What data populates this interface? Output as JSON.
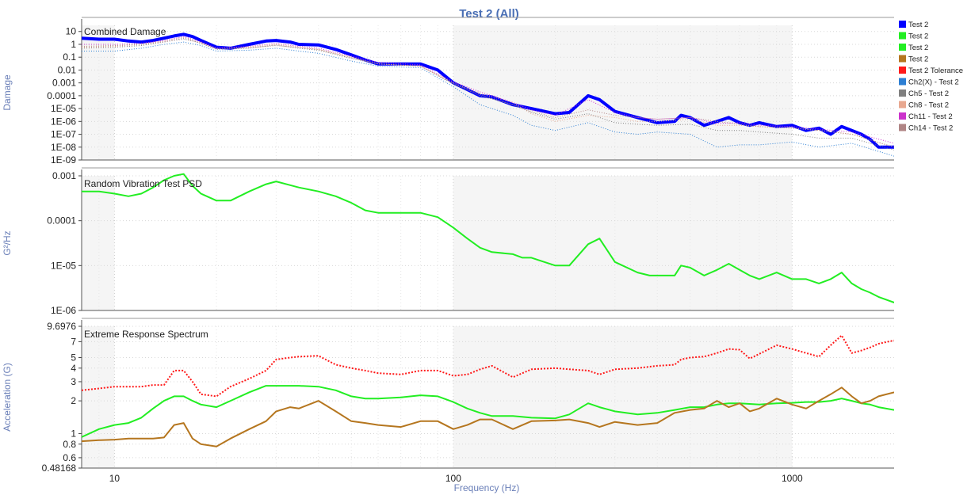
{
  "title": "Test 2 (All)",
  "xlabel": "Frequency (Hz)",
  "x_ticks": [
    "10",
    "100",
    "1000"
  ],
  "legend": [
    {
      "label": "Test 2",
      "color": "#0000ff"
    },
    {
      "label": "Test 2",
      "color": "#22ee22"
    },
    {
      "label": "Test 2",
      "color": "#22ee22"
    },
    {
      "label": "Test 2",
      "color": "#b5761f"
    },
    {
      "label": "Test 2 Tolerance",
      "color": "#ff1a1a"
    },
    {
      "label": "Ch2(X) - Test 2",
      "color": "#2d7fd3"
    },
    {
      "label": "Ch5 - Test 2",
      "color": "#808080"
    },
    {
      "label": "Ch8 - Test 2",
      "color": "#e8a890"
    },
    {
      "label": "Ch11 - Test 2",
      "color": "#cc33cc"
    },
    {
      "label": "Ch14 - Test 2",
      "color": "#b08585"
    }
  ],
  "chart_data": [
    {
      "type": "line",
      "title": "Combined Damage",
      "ylabel": "Damage",
      "yscale": "log",
      "xscale": "log",
      "xlim": [
        8,
        2000
      ],
      "ylim": [
        1e-09,
        30
      ],
      "y_ticks": [
        "10",
        "1",
        "0.1",
        "0.01",
        "0.001",
        "0.0001",
        "1E-05",
        "1E-06",
        "1E-07",
        "1E-08",
        "1E-09"
      ],
      "series": [
        {
          "name": "Test 2",
          "color": "#0000ff",
          "width": 4,
          "x": [
            8,
            9,
            10,
            11,
            12,
            13,
            14,
            15,
            16,
            17,
            18,
            20,
            22,
            25,
            28,
            30,
            33,
            35,
            40,
            45,
            50,
            55,
            60,
            70,
            80,
            90,
            100,
            110,
            120,
            130,
            150,
            170,
            200,
            220,
            250,
            270,
            300,
            350,
            400,
            450,
            470,
            500,
            550,
            600,
            650,
            700,
            750,
            800,
            900,
            1000,
            1100,
            1200,
            1300,
            1400,
            1500,
            1600,
            1700,
            1800,
            2000
          ],
          "y": [
            3,
            2.5,
            2.5,
            1.8,
            1.5,
            2,
            3,
            4.5,
            6,
            4,
            2,
            0.6,
            0.5,
            1,
            1.8,
            2,
            1.5,
            1,
            0.9,
            0.4,
            0.15,
            0.06,
            0.03,
            0.03,
            0.03,
            0.01,
            0.001,
            0.0003,
            0.0001,
            8e-05,
            2e-05,
            1e-05,
            4e-06,
            5e-06,
            0.0001,
            5e-05,
            6e-06,
            2e-06,
            8e-07,
            1e-06,
            3e-06,
            2e-06,
            5e-07,
            1e-06,
            2e-06,
            8e-07,
            5e-07,
            8e-07,
            4e-07,
            5e-07,
            2e-07,
            3e-07,
            1e-07,
            4e-07,
            2e-07,
            1e-07,
            4e-08,
            1e-08,
            1e-08
          ]
        },
        {
          "name": "Ch2(X) - Test 2",
          "color": "#2d7fd3",
          "width": 1,
          "dotted": true,
          "x": [
            8,
            10,
            12,
            14,
            16,
            18,
            20,
            25,
            30,
            35,
            40,
            50,
            60,
            80,
            100,
            120,
            150,
            170,
            200,
            250,
            300,
            350,
            400,
            500,
            600,
            700,
            800,
            1000,
            1200,
            1500,
            2000
          ],
          "y": [
            0.3,
            0.3,
            0.5,
            1.0,
            1.5,
            0.8,
            0.3,
            0.35,
            0.5,
            0.3,
            0.2,
            0.05,
            0.02,
            0.015,
            0.0005,
            2e-05,
            3e-06,
            5e-07,
            2e-07,
            8e-07,
            1.5e-07,
            1e-07,
            1.5e-07,
            1e-07,
            1e-08,
            1.5e-08,
            1.5e-08,
            2.5e-08,
            1e-08,
            2e-08,
            2e-09
          ]
        },
        {
          "name": "Ch5 - Test 2",
          "color": "#808080",
          "width": 1,
          "dotted": true,
          "x": [
            8,
            10,
            12,
            14,
            16,
            18,
            20,
            25,
            30,
            35,
            40,
            50,
            60,
            80,
            100,
            120,
            150,
            170,
            200,
            250,
            300,
            350,
            400,
            500,
            600,
            700,
            800,
            1000,
            1200,
            1500,
            2000
          ],
          "y": [
            0.5,
            0.6,
            0.8,
            1.5,
            3.0,
            1.2,
            0.4,
            0.5,
            0.9,
            0.5,
            0.35,
            0.08,
            0.03,
            0.02,
            0.0008,
            0.0001,
            2e-05,
            5e-06,
            1.5e-06,
            4e-06,
            8e-07,
            6e-07,
            5e-07,
            6e-07,
            2e-07,
            2e-07,
            1.5e-07,
            1e-07,
            5e-08,
            5e-08,
            6e-09
          ]
        },
        {
          "name": "Ch8 - Test 2",
          "color": "#e8a890",
          "width": 1,
          "dotted": true,
          "x": [
            8,
            10,
            12,
            14,
            16,
            18,
            20,
            25,
            30,
            35,
            40,
            50,
            60,
            80,
            100,
            120,
            150,
            170,
            200,
            250,
            300,
            350,
            400,
            500,
            600,
            700,
            800,
            1000,
            1200,
            1500,
            2000
          ],
          "y": [
            0.6,
            0.7,
            1.0,
            1.8,
            3.5,
            1.4,
            0.5,
            0.6,
            1.0,
            0.6,
            0.4,
            0.1,
            0.03,
            0.02,
            0.001,
            0.00015,
            3e-05,
            4e-06,
            1e-06,
            3e-06,
            2e-06,
            1e-06,
            1e-06,
            1.5e-06,
            5e-07,
            5e-07,
            4e-07,
            3e-07,
            2e-07,
            1e-07,
            1e-08
          ]
        },
        {
          "name": "Ch11 - Test 2",
          "color": "#cc33cc",
          "width": 1,
          "dotted": true,
          "x": [
            8,
            10,
            12,
            14,
            16,
            18,
            20,
            25,
            30,
            35,
            40,
            50,
            60,
            80,
            100,
            120,
            150,
            170,
            200,
            250,
            300,
            350,
            400,
            500,
            600,
            700,
            800,
            1000,
            1200,
            1500,
            2000
          ],
          "y": [
            1.0,
            1.0,
            1.2,
            2.0,
            4.0,
            1.6,
            0.5,
            0.7,
            1.2,
            0.7,
            0.5,
            0.12,
            0.04,
            0.025,
            0.0012,
            0.0002,
            3e-05,
            8e-06,
            3e-06,
            5e-05,
            5e-06,
            2e-06,
            1.5e-06,
            2e-06,
            7e-07,
            8e-07,
            5e-07,
            4e-07,
            2.5e-07,
            1.5e-07,
            2e-08
          ]
        },
        {
          "name": "Ch14 - Test 2",
          "color": "#b08585",
          "width": 1,
          "dotted": true,
          "x": [
            8,
            10,
            12,
            14,
            16,
            18,
            20,
            25,
            30,
            35,
            40,
            50,
            60,
            80,
            100,
            120,
            150,
            170,
            200,
            250,
            300,
            350,
            400,
            500,
            600,
            700,
            800,
            1000,
            1200,
            1500,
            2000
          ],
          "y": [
            0.7,
            0.8,
            1.0,
            1.6,
            2.5,
            1.3,
            0.45,
            0.55,
            0.8,
            0.55,
            0.4,
            0.09,
            0.03,
            0.02,
            0.0009,
            0.00012,
            2e-05,
            6e-06,
            2e-06,
            8e-06,
            3e-06,
            2e-06,
            1.5e-06,
            2e-06,
            1e-06,
            6e-07,
            4e-07,
            3e-07,
            2e-07,
            1e-07,
            1e-08
          ]
        }
      ]
    },
    {
      "type": "line",
      "title": "Random Vibration Test PSD",
      "ylabel": "G²/Hz",
      "yscale": "log",
      "xscale": "log",
      "xlim": [
        8,
        2000
      ],
      "ylim": [
        1e-06,
        0.001
      ],
      "y_ticks": [
        "0.001",
        "0.0001",
        "1E-05",
        "1E-06"
      ],
      "series": [
        {
          "name": "Test 2",
          "color": "#22ee22",
          "width": 2,
          "x": [
            8,
            9,
            10,
            11,
            12,
            13,
            14,
            15,
            16,
            17,
            18,
            20,
            22,
            25,
            28,
            30,
            33,
            35,
            40,
            45,
            50,
            55,
            60,
            70,
            80,
            90,
            100,
            110,
            120,
            130,
            150,
            160,
            170,
            180,
            200,
            220,
            250,
            270,
            300,
            350,
            380,
            400,
            450,
            470,
            500,
            550,
            600,
            650,
            700,
            750,
            800,
            900,
            1000,
            1100,
            1200,
            1300,
            1400,
            1500,
            1600,
            1700,
            1800,
            2000
          ],
          "y": [
            0.00045,
            0.00045,
            0.0004,
            0.00035,
            0.0004,
            0.00055,
            0.0008,
            0.001,
            0.0011,
            0.0006,
            0.0004,
            0.00028,
            0.00028,
            0.00045,
            0.00065,
            0.00075,
            0.00062,
            0.00055,
            0.00045,
            0.00035,
            0.00025,
            0.00017,
            0.00015,
            0.00015,
            0.00015,
            0.00012,
            7e-05,
            4e-05,
            2.5e-05,
            2e-05,
            1.8e-05,
            1.5e-05,
            1.5e-05,
            1.3e-05,
            1e-05,
            1e-05,
            3e-05,
            4e-05,
            1.2e-05,
            7e-06,
            6e-06,
            6e-06,
            6e-06,
            1e-05,
            9e-06,
            6e-06,
            8e-06,
            1.1e-05,
            8e-06,
            6e-06,
            5e-06,
            7e-06,
            5e-06,
            5e-06,
            4e-06,
            5e-06,
            7e-06,
            4e-06,
            3e-06,
            2.5e-06,
            2e-06,
            1.5e-06
          ]
        }
      ]
    },
    {
      "type": "line",
      "title": "Extreme Response Spectrum",
      "ylabel": "Acceleration (G)",
      "yscale": "log",
      "xscale": "log",
      "xlim": [
        8,
        2000
      ],
      "ylim": [
        0.48168,
        9.6976
      ],
      "y_ticks": [
        "9.6976",
        "7",
        "5",
        "4",
        "3",
        "2",
        "1",
        "0.8",
        "0.6",
        "0.48168"
      ],
      "y_tick_values": [
        9.6976,
        7,
        5,
        4,
        3,
        2,
        1,
        0.8,
        0.6,
        0.48168
      ],
      "series": [
        {
          "name": "Test 2 Tolerance",
          "color": "#ff1a1a",
          "width": 2,
          "dotted": true,
          "x": [
            8,
            9,
            10,
            11,
            12,
            13,
            14,
            15,
            16,
            17,
            18,
            20,
            22,
            25,
            28,
            30,
            33,
            35,
            40,
            45,
            50,
            55,
            60,
            70,
            80,
            90,
            100,
            110,
            120,
            130,
            150,
            170,
            200,
            220,
            250,
            270,
            300,
            350,
            400,
            450,
            470,
            500,
            550,
            600,
            650,
            700,
            750,
            800,
            900,
            1000,
            1100,
            1200,
            1300,
            1400,
            1500,
            1600,
            1700,
            1800,
            2000
          ],
          "y": [
            2.5,
            2.6,
            2.7,
            2.7,
            2.7,
            2.8,
            2.8,
            3.8,
            3.8,
            3.0,
            2.3,
            2.2,
            2.7,
            3.2,
            3.8,
            4.8,
            5.0,
            5.1,
            5.2,
            4.3,
            4.0,
            3.8,
            3.6,
            3.5,
            3.8,
            3.8,
            3.4,
            3.5,
            3.9,
            4.2,
            3.3,
            3.9,
            4.0,
            3.9,
            3.8,
            3.5,
            3.9,
            4.0,
            4.2,
            4.3,
            4.8,
            5.0,
            5.1,
            5.5,
            6.0,
            5.9,
            4.9,
            5.4,
            6.5,
            6.0,
            5.5,
            5.1,
            6.5,
            8.0,
            5.5,
            5.8,
            6.2,
            6.7,
            7.2
          ]
        },
        {
          "name": "Test 2",
          "color": "#22ee22",
          "width": 2,
          "x": [
            8,
            9,
            10,
            11,
            12,
            13,
            14,
            15,
            16,
            17,
            18,
            20,
            22,
            25,
            28,
            30,
            33,
            35,
            40,
            45,
            50,
            55,
            60,
            70,
            80,
            90,
            100,
            110,
            120,
            130,
            150,
            170,
            200,
            220,
            250,
            270,
            300,
            350,
            400,
            450,
            500,
            550,
            600,
            650,
            700,
            800,
            900,
            1000,
            1100,
            1200,
            1300,
            1400,
            1500,
            1600,
            1700,
            1800,
            2000
          ],
          "y": [
            0.93,
            1.1,
            1.2,
            1.25,
            1.4,
            1.7,
            2.0,
            2.2,
            2.2,
            2.0,
            1.85,
            1.75,
            2.0,
            2.4,
            2.75,
            2.75,
            2.75,
            2.75,
            2.7,
            2.5,
            2.2,
            2.1,
            2.1,
            2.15,
            2.25,
            2.2,
            1.95,
            1.7,
            1.55,
            1.45,
            1.45,
            1.4,
            1.38,
            1.5,
            1.9,
            1.75,
            1.6,
            1.5,
            1.55,
            1.65,
            1.75,
            1.75,
            1.85,
            1.9,
            1.9,
            1.85,
            1.9,
            1.92,
            1.95,
            1.95,
            2.0,
            2.1,
            2.0,
            1.9,
            1.85,
            1.75,
            1.65
          ]
        },
        {
          "name": "Test 2",
          "color": "#b5761f",
          "width": 2,
          "x": [
            8,
            9,
            10,
            11,
            12,
            13,
            14,
            15,
            16,
            17,
            18,
            20,
            22,
            25,
            28,
            30,
            33,
            35,
            40,
            45,
            50,
            55,
            60,
            70,
            80,
            90,
            100,
            110,
            120,
            130,
            150,
            170,
            200,
            220,
            250,
            270,
            300,
            350,
            400,
            450,
            500,
            550,
            600,
            650,
            700,
            750,
            800,
            900,
            1000,
            1100,
            1200,
            1300,
            1400,
            1500,
            1600,
            1700,
            1800,
            2000
          ],
          "y": [
            0.85,
            0.87,
            0.88,
            0.9,
            0.9,
            0.9,
            0.92,
            1.2,
            1.25,
            0.9,
            0.8,
            0.76,
            0.9,
            1.1,
            1.3,
            1.6,
            1.75,
            1.7,
            2.0,
            1.6,
            1.3,
            1.25,
            1.2,
            1.15,
            1.3,
            1.3,
            1.1,
            1.2,
            1.35,
            1.35,
            1.1,
            1.3,
            1.32,
            1.35,
            1.25,
            1.15,
            1.28,
            1.2,
            1.25,
            1.55,
            1.65,
            1.7,
            2.0,
            1.75,
            1.9,
            1.6,
            1.7,
            2.1,
            1.85,
            1.7,
            2.0,
            2.3,
            2.65,
            2.2,
            1.9,
            2.0,
            2.2,
            2.4
          ]
        }
      ]
    }
  ]
}
